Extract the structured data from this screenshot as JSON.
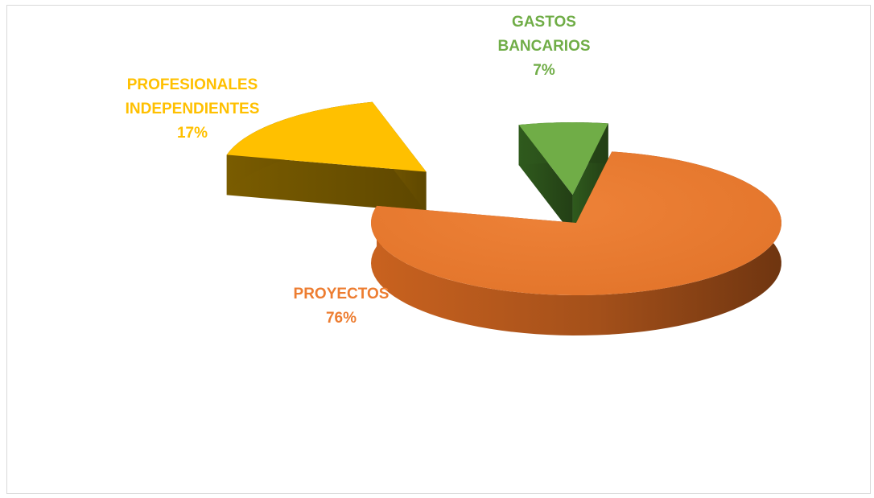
{
  "chart_data": {
    "type": "pie",
    "title": "",
    "three_d": true,
    "exploded": true,
    "slices": [
      {
        "name": "PROYECTOS",
        "label_lines": [
          "PROYECTOS"
        ],
        "value": 76,
        "value_text": "76%",
        "color": "#ED7D31",
        "label_color": "#ED7D31"
      },
      {
        "name": "PROFESIONALES INDEPENDIENTES",
        "label_lines": [
          "PROFESIONALES",
          "INDEPENDIENTES"
        ],
        "value": 17,
        "value_text": "17%",
        "color": "#FFC000",
        "label_color": "#FFC000"
      },
      {
        "name": "GASTOS BANCARIOS",
        "label_lines": [
          "GASTOS",
          "BANCARIOS"
        ],
        "value": 7,
        "value_text": "7%",
        "color": "#70AD47",
        "label_color": "#70AD47"
      }
    ]
  }
}
